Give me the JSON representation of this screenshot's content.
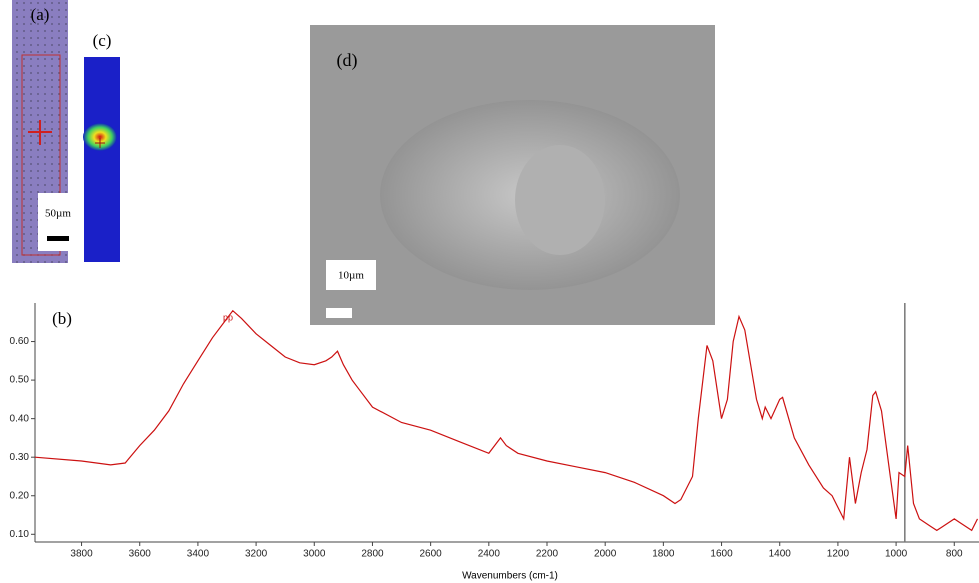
{
  "chart_data": {
    "type": "line",
    "panel_labels": [
      "(a)",
      "(b)",
      "(c)",
      "(d)"
    ],
    "scale_labels": [
      "50µm",
      "10µm"
    ],
    "peak_annotation": "pp",
    "x_label": "Wavenumbers (cm-1)",
    "x": [
      3960,
      3800,
      3700,
      3650,
      3600,
      3550,
      3500,
      3450,
      3400,
      3350,
      3300,
      3280,
      3250,
      3200,
      3150,
      3100,
      3050,
      3000,
      2960,
      2940,
      2920,
      2900,
      2870,
      2850,
      2800,
      2700,
      2600,
      2500,
      2400,
      2360,
      2340,
      2300,
      2200,
      2100,
      2000,
      1900,
      1800,
      1760,
      1740,
      1700,
      1680,
      1650,
      1630,
      1600,
      1580,
      1560,
      1540,
      1520,
      1480,
      1460,
      1450,
      1430,
      1400,
      1390,
      1350,
      1300,
      1250,
      1220,
      1180,
      1160,
      1140,
      1120,
      1100,
      1080,
      1070,
      1050,
      1020,
      1000,
      990,
      970,
      960,
      940,
      920,
      880,
      860,
      840,
      800,
      780,
      740,
      720
    ],
    "series": [
      {
        "color": "#cc1111",
        "values": [
          0.3,
          0.29,
          0.28,
          0.285,
          0.33,
          0.37,
          0.42,
          0.49,
          0.55,
          0.61,
          0.66,
          0.68,
          0.66,
          0.62,
          0.59,
          0.56,
          0.545,
          0.54,
          0.55,
          0.56,
          0.575,
          0.54,
          0.5,
          0.48,
          0.43,
          0.39,
          0.37,
          0.34,
          0.31,
          0.35,
          0.33,
          0.31,
          0.29,
          0.275,
          0.26,
          0.235,
          0.2,
          0.18,
          0.19,
          0.25,
          0.4,
          0.59,
          0.55,
          0.4,
          0.45,
          0.6,
          0.665,
          0.63,
          0.45,
          0.4,
          0.43,
          0.4,
          0.45,
          0.455,
          0.35,
          0.28,
          0.22,
          0.2,
          0.14,
          0.3,
          0.18,
          0.26,
          0.32,
          0.46,
          0.47,
          0.42,
          0.25,
          0.14,
          0.26,
          0.25,
          0.33,
          0.18,
          0.14,
          0.12,
          0.11,
          0.12,
          0.14,
          0.13,
          0.11,
          0.14
        ]
      }
    ],
    "cursor_x": 970,
    "xlim": [
      3960,
      715
    ],
    "ylim": [
      0.08,
      0.7
    ],
    "xticks": [
      3800,
      3600,
      3400,
      3200,
      3000,
      2800,
      2600,
      2400,
      2200,
      2000,
      1800,
      1600,
      1400,
      1200,
      1000,
      800
    ],
    "yticks": [
      {
        "value": 0.1,
        "label": "0.10"
      },
      {
        "value": 0.2,
        "label": "0.20"
      },
      {
        "value": 0.3,
        "label": "0.30"
      },
      {
        "value": 0.4,
        "label": "0.40"
      },
      {
        "value": 0.5,
        "label": "0.50"
      },
      {
        "value": 0.6,
        "label": "0.60"
      }
    ]
  }
}
